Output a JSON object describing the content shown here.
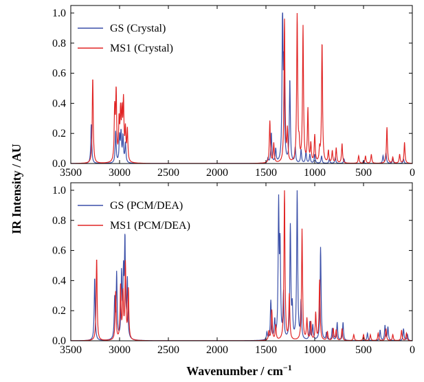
{
  "chart_data": {
    "type": "line",
    "xlabel": "Wavenumber / cm",
    "xlabel_sup": "−1",
    "ylabel": "IR Intensity / AU",
    "x_reversed": true,
    "xlim": [
      3500,
      0
    ],
    "x_ticks": [
      3500,
      3000,
      2500,
      2000,
      1500,
      1000,
      500,
      0
    ],
    "x_tick_labels": [
      "3500",
      "3000",
      "2500",
      "2000",
      "1500",
      "1000",
      "500",
      "0"
    ],
    "ylim": [
      0,
      1.05
    ],
    "y_ticks": [
      0,
      0.2,
      0.4,
      0.6,
      0.8,
      1.0
    ],
    "y_tick_labels": [
      "0.0",
      "0.2",
      "0.4",
      "0.6",
      "0.8",
      "1.0"
    ],
    "grid": false,
    "legend_placement": "top-left",
    "colors": {
      "blue": "#3a4fa8",
      "red": "#e02424"
    },
    "panels": [
      {
        "series": [
          {
            "name": "GS (Crystal)",
            "color": "#3a4fa8",
            "peaks": [
              [
                3290,
                0.26
              ],
              [
                3040,
                0.21
              ],
              [
                3000,
                0.17
              ],
              [
                2985,
                0.19
              ],
              [
                2965,
                0.17
              ],
              [
                2940,
                0.13
              ],
              [
                1480,
                0.03
              ],
              [
                1445,
                0.2
              ],
              [
                1400,
                0.09
              ],
              [
                1330,
                1.0
              ],
              [
                1315,
                0.6
              ],
              [
                1255,
                0.55
              ],
              [
                1200,
                0.1
              ],
              [
                1140,
                0.09
              ],
              [
                1090,
                0.08
              ],
              [
                1050,
                0.06
              ],
              [
                1000,
                0.06
              ],
              [
                930,
                0.05
              ],
              [
                850,
                0.03
              ],
              [
                790,
                0.04
              ],
              [
                700,
                0.03
              ],
              [
                500,
                0.02
              ],
              [
                300,
                0.05
              ],
              [
                270,
                0.07
              ],
              [
                200,
                0.03
              ],
              [
                90,
                0.03
              ]
            ]
          },
          {
            "name": "MS1 (Crystal)",
            "color": "#e02424",
            "peaks": [
              [
                3275,
                0.57
              ],
              [
                3050,
                0.34
              ],
              [
                3035,
                0.45
              ],
              [
                3005,
                0.25
              ],
              [
                2990,
                0.3
              ],
              [
                2975,
                0.29
              ],
              [
                2960,
                0.38
              ],
              [
                2940,
                0.2
              ],
              [
                2920,
                0.21
              ],
              [
                1460,
                0.28
              ],
              [
                1420,
                0.13
              ],
              [
                1310,
                0.95
              ],
              [
                1280,
                0.21
              ],
              [
                1180,
                1.0
              ],
              [
                1160,
                0.1
              ],
              [
                1120,
                0.9
              ],
              [
                1070,
                0.35
              ],
              [
                1040,
                0.12
              ],
              [
                1000,
                0.18
              ],
              [
                950,
                0.08
              ],
              [
                925,
                0.8
              ],
              [
                860,
                0.08
              ],
              [
                820,
                0.08
              ],
              [
                780,
                0.1
              ],
              [
                720,
                0.13
              ],
              [
                550,
                0.05
              ],
              [
                480,
                0.05
              ],
              [
                420,
                0.06
              ],
              [
                260,
                0.24
              ],
              [
                200,
                0.04
              ],
              [
                130,
                0.06
              ],
              [
                80,
                0.14
              ]
            ]
          }
        ]
      },
      {
        "series": [
          {
            "name": "GS (PCM/DEA)",
            "color": "#3a4fa8",
            "peaks": [
              [
                3255,
                0.42
              ],
              [
                3050,
                0.26
              ],
              [
                3030,
                0.43
              ],
              [
                2980,
                0.42
              ],
              [
                2960,
                0.4
              ],
              [
                2945,
                0.63
              ],
              [
                2920,
                0.38
              ],
              [
                1490,
                0.05
              ],
              [
                1450,
                0.26
              ],
              [
                1410,
                0.12
              ],
              [
                1370,
                0.88
              ],
              [
                1355,
                0.58
              ],
              [
                1320,
                0.3
              ],
              [
                1250,
                0.75
              ],
              [
                1230,
                0.2
              ],
              [
                1180,
                1.0
              ],
              [
                1140,
                0.25
              ],
              [
                1050,
                0.12
              ],
              [
                1020,
                0.1
              ],
              [
                940,
                0.62
              ],
              [
                880,
                0.05
              ],
              [
                820,
                0.08
              ],
              [
                770,
                0.12
              ],
              [
                710,
                0.12
              ],
              [
                460,
                0.05
              ],
              [
                330,
                0.07
              ],
              [
                280,
                0.1
              ],
              [
                250,
                0.09
              ],
              [
                90,
                0.08
              ],
              [
                50,
                0.04
              ]
            ]
          },
          {
            "name": "MS1 (PCM/DEA)",
            "color": "#e02424",
            "peaks": [
              [
                3235,
                0.55
              ],
              [
                3040,
                0.32
              ],
              [
                2990,
                0.35
              ],
              [
                2965,
                0.3
              ],
              [
                2940,
                0.5
              ],
              [
                2910,
                0.33
              ],
              [
                1470,
                0.06
              ],
              [
                1440,
                0.2
              ],
              [
                1400,
                0.1
              ],
              [
                1310,
                1.0
              ],
              [
                1260,
                0.3
              ],
              [
                1130,
                0.74
              ],
              [
                1080,
                0.14
              ],
              [
                1040,
                0.12
              ],
              [
                990,
                0.18
              ],
              [
                950,
                0.4
              ],
              [
                870,
                0.06
              ],
              [
                810,
                0.08
              ],
              [
                780,
                0.07
              ],
              [
                720,
                0.08
              ],
              [
                600,
                0.04
              ],
              [
                500,
                0.04
              ],
              [
                430,
                0.04
              ],
              [
                350,
                0.05
              ],
              [
                270,
                0.08
              ],
              [
                200,
                0.04
              ],
              [
                110,
                0.07
              ],
              [
                60,
                0.05
              ]
            ]
          }
        ]
      }
    ]
  }
}
